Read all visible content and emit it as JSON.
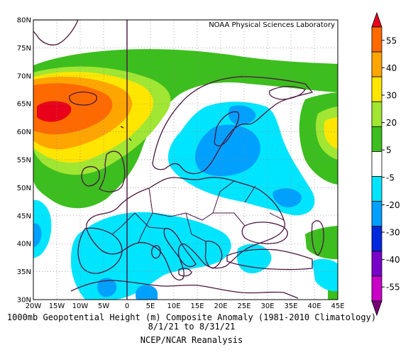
{
  "map": {
    "credit": "NOAA Physical Sciences Laboratory",
    "lat_labels": [
      "80N",
      "75N",
      "70N",
      "65N",
      "60N",
      "55N",
      "50N",
      "45N",
      "40N",
      "35N",
      "30N"
    ],
    "lon_labels": [
      "20W",
      "15W",
      "10W",
      "5W",
      "0",
      "5E",
      "10E",
      "15E",
      "20E",
      "25E",
      "30E",
      "35E",
      "40E",
      "45E"
    ],
    "extent": {
      "lon_min": -20,
      "lon_max": 45,
      "lat_min": 30,
      "lat_max": 80
    }
  },
  "colorbar": {
    "labels": [
      "55",
      "40",
      "30",
      "20",
      "5",
      "-5",
      "-20",
      "-30",
      "-40",
      "-55"
    ],
    "colors": [
      "#e8001a",
      "#ff6a00",
      "#ffa500",
      "#ffe600",
      "#a0e632",
      "#3cbe1e",
      "#ffffff",
      "#00e5ff",
      "#00a0ff",
      "#0028dc",
      "#7800c8",
      "#c800c8",
      "#780078"
    ]
  },
  "captions": {
    "line1": "1000mb Geopotential Height (m) Composite Anomaly (1981-2010 Climatology)",
    "line2": "8/1/21 to 8/31/21",
    "line3": "NCEP/NCAR Reanalysis"
  }
}
